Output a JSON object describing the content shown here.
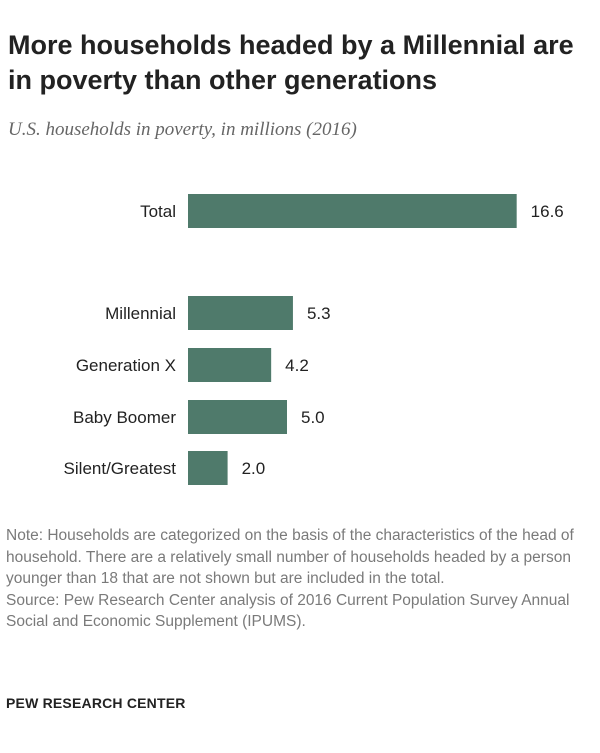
{
  "title": "More households  headed by a Millennial are in poverty than other generations",
  "subtitle": "U.S. households in poverty, in millions (2016)",
  "chart_data": {
    "type": "bar",
    "orientation": "horizontal",
    "categories": [
      "Total",
      "Millennial",
      "Generation X",
      "Baby Boomer",
      "Silent/Greatest"
    ],
    "values": [
      16.6,
      5.3,
      4.2,
      5.0,
      2.0
    ],
    "value_labels": [
      "16.6",
      "5.3",
      "4.2",
      "5.0",
      "2.0"
    ],
    "bar_color": "#4f7a6b",
    "grid": false
  },
  "note": "Note: Households are categorized on the basis of the characteristics of the head of household. There are a relatively small number of households headed by a person younger than 18 that are not shown but are included in the total.",
  "source": "Source: Pew Research Center analysis of 2016 Current Population Survey Annual Social and Economic Supplement (IPUMS).",
  "footer": "PEW RESEARCH CENTER"
}
